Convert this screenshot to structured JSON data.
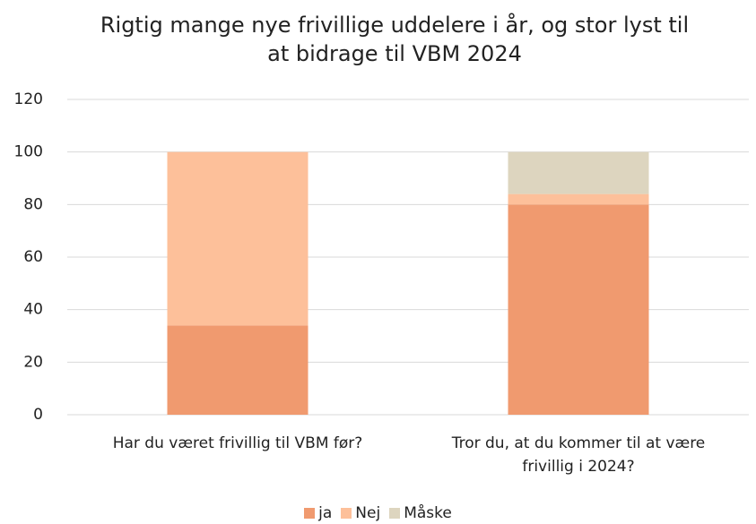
{
  "chart_data": {
    "type": "stacked_bar",
    "title": "Rigtig mange nye frivillige uddelere i år, og stor lyst til at bidrage til VBM 2024",
    "categories": [
      "Har du været frivillig til VBM før?",
      "Tror du, at du kommer til at være frivillig i 2024?"
    ],
    "series": [
      {
        "name": "ja",
        "color": "#f09a6f",
        "values": [
          34,
          80
        ]
      },
      {
        "name": "Nej",
        "color": "#fdc09a",
        "values": [
          66,
          4
        ]
      },
      {
        "name": "Måske",
        "color": "#ddd5bf",
        "values": [
          0,
          16
        ]
      }
    ],
    "ylim": [
      0,
      120
    ],
    "yticks": [
      0,
      20,
      40,
      60,
      80,
      100,
      120
    ],
    "grid": true,
    "legend": "bottom"
  }
}
